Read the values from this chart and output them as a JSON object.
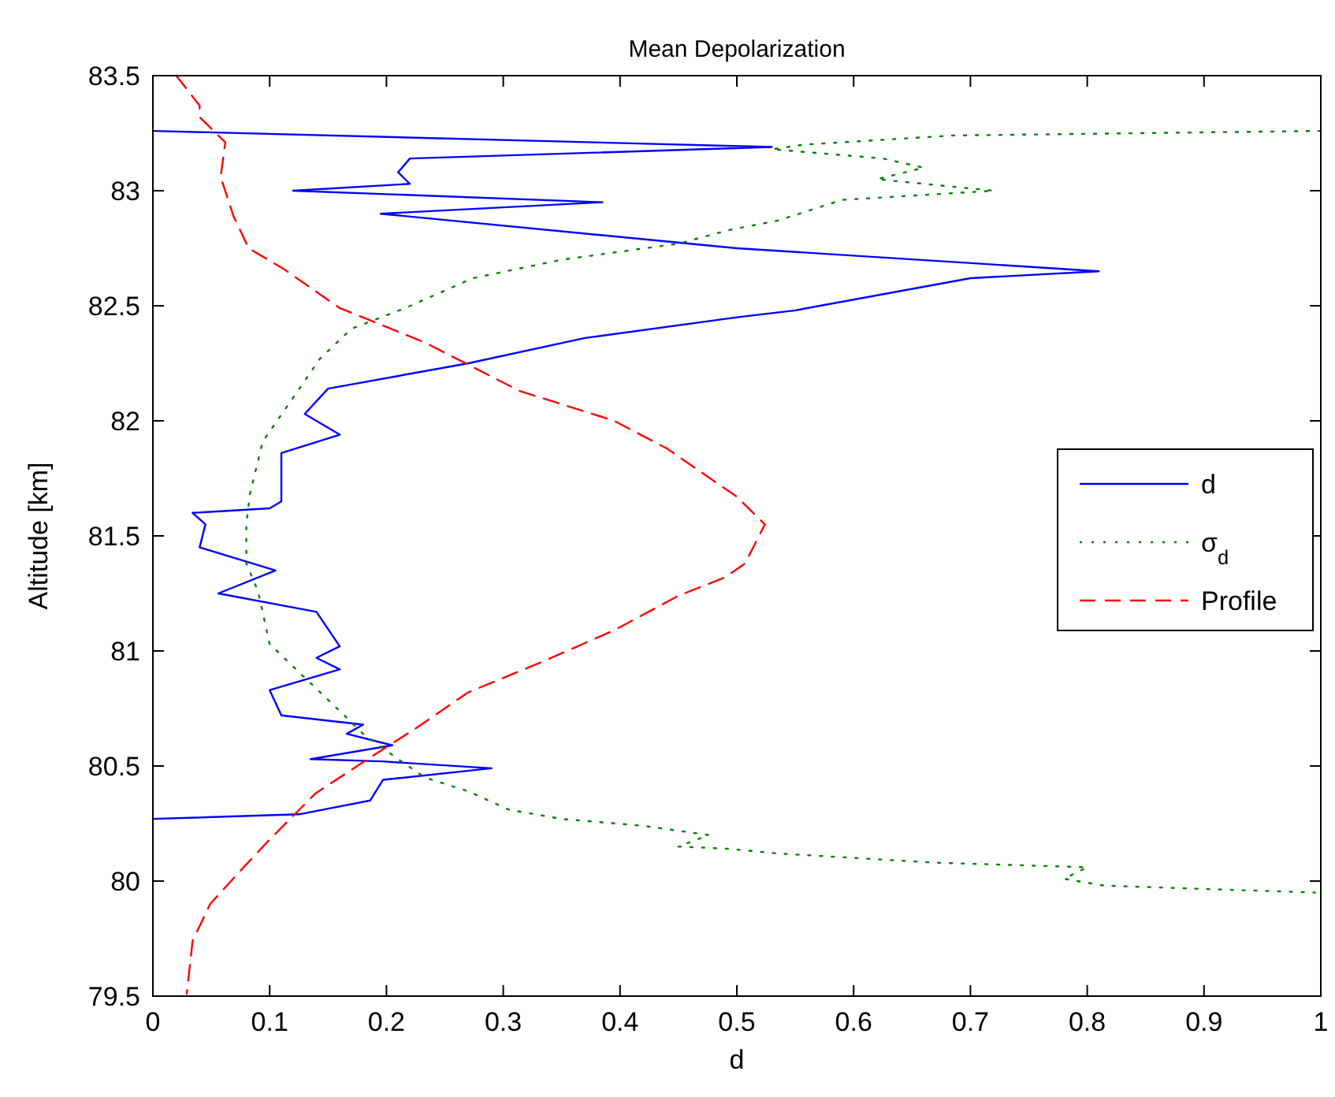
{
  "chart_data": {
    "type": "line",
    "title": "Mean Depolarization",
    "xlabel": "d",
    "ylabel": "Altitude [km]",
    "xlim": [
      0,
      1
    ],
    "xticks": [
      0,
      0.1,
      0.2,
      0.3,
      0.4,
      0.5,
      0.6,
      0.7,
      0.8,
      0.9,
      1
    ],
    "ylim": [
      79.5,
      83.5
    ],
    "yticks": [
      79.5,
      80,
      80.5,
      81,
      81.5,
      82,
      82.5,
      83,
      83.5
    ],
    "grid": false,
    "legend": "right",
    "marker": "none",
    "series": [
      {
        "name": "d",
        "color": "#0000ff",
        "line_style": "solid",
        "x": [
          0,
          0.53,
          0.22,
          0.21,
          0.22,
          0.12,
          0.385,
          0.195,
          0.5,
          0.81,
          0.7,
          0.55,
          0.5,
          0.37,
          0.27,
          0.15,
          0.13,
          0.16,
          0.11,
          0.11,
          0.11,
          0.1,
          0.034,
          0.045,
          0.04,
          0.105,
          0.056,
          0.14,
          0.16,
          0.14,
          0.16,
          0.1,
          0.11,
          0.18,
          0.166,
          0.205,
          0.135,
          0.196,
          0.29,
          0.197,
          0.186,
          0.125,
          0
        ],
        "values": [
          83.26,
          83.19,
          83.14,
          83.08,
          83.03,
          83.0,
          82.95,
          82.9,
          82.75,
          82.65,
          82.62,
          82.48,
          82.45,
          82.36,
          82.25,
          82.14,
          82.03,
          81.94,
          81.86,
          81.73,
          81.65,
          81.62,
          81.6,
          81.55,
          81.45,
          81.35,
          81.25,
          81.17,
          81.02,
          80.97,
          80.92,
          80.83,
          80.72,
          80.68,
          80.64,
          80.59,
          80.53,
          80.52,
          80.49,
          80.44,
          80.35,
          80.29,
          80.27
        ]
      },
      {
        "name": "σ$_{d}$",
        "color": "#008000",
        "line_style": "dotted",
        "x": [
          1,
          0.685,
          0.557,
          0.53,
          0.625,
          0.66,
          0.62,
          0.72,
          0.59,
          0.535,
          0.494,
          0.45,
          0.35,
          0.274,
          0.216,
          0.17,
          0.143,
          0.12,
          0.094,
          0.083,
          0.08,
          0.08,
          0.09,
          0.1,
          0.135,
          0.166,
          0.18,
          0.21,
          0.233,
          0.27,
          0.305,
          0.35,
          0.42,
          0.476,
          0.45,
          0.494,
          0.535,
          0.67,
          0.8,
          0.78,
          0.815,
          0.995
        ],
        "values": [
          83.26,
          83.24,
          83.2,
          83.18,
          83.14,
          83.1,
          83.05,
          83.0,
          82.96,
          82.87,
          82.83,
          82.77,
          82.7,
          82.62,
          82.49,
          82.4,
          82.27,
          82.1,
          81.91,
          81.68,
          81.55,
          81.38,
          81.26,
          81.03,
          80.86,
          80.71,
          80.64,
          80.53,
          80.45,
          80.39,
          80.31,
          80.27,
          80.24,
          80.2,
          80.15,
          80.14,
          80.12,
          80.08,
          80.06,
          80.01,
          79.98,
          79.95
        ]
      },
      {
        "name": "Profile",
        "color": "#ff0000",
        "line_style": "dashed",
        "x": [
          0.02,
          0.04,
          0.04,
          0.062,
          0.058,
          0.069,
          0.082,
          0.112,
          0.16,
          0.233,
          0.314,
          0.395,
          0.44,
          0.5,
          0.524,
          0.507,
          0.49,
          0.45,
          0.395,
          0.332,
          0.27,
          0.224,
          0.184,
          0.139,
          0.098,
          0.074,
          0.049,
          0.034,
          0.029
        ],
        "values": [
          83.5,
          83.37,
          83.32,
          83.21,
          83.06,
          82.89,
          82.75,
          82.66,
          82.49,
          82.34,
          82.13,
          82.0,
          81.88,
          81.67,
          81.55,
          81.38,
          81.32,
          81.24,
          81.09,
          80.95,
          80.82,
          80.66,
          80.53,
          80.38,
          80.17,
          80.04,
          79.9,
          79.74,
          79.51
        ]
      }
    ]
  }
}
